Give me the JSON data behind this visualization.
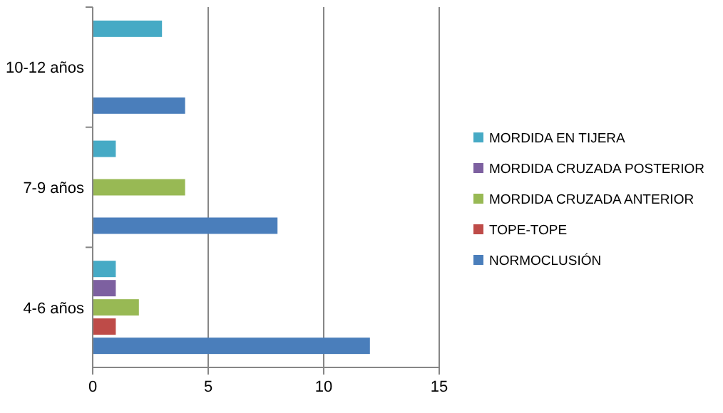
{
  "chart_data": {
    "type": "bar",
    "orientation": "horizontal",
    "categories": [
      "10-12 años",
      "7-9 años",
      "4-6 años"
    ],
    "series": [
      {
        "name": "NORMOCLUSIÓN",
        "color": "#4a7ebb",
        "values": [
          4,
          8,
          12
        ]
      },
      {
        "name": "TOPE-TOPE",
        "color": "#be4b48",
        "values": [
          0,
          0,
          1
        ]
      },
      {
        "name": "MORDIDA CRUZADA ANTERIOR",
        "color": "#98b954",
        "values": [
          0,
          4,
          2
        ]
      },
      {
        "name": "MORDIDA CRUZADA POSTERIOR",
        "color": "#7d60a0",
        "values": [
          0,
          0,
          1
        ]
      },
      {
        "name": "MORDIDA EN TIJERA",
        "color": "#46aac5",
        "values": [
          3,
          1,
          1
        ]
      }
    ],
    "xlim": [
      0,
      15
    ],
    "xticks": [
      0,
      5,
      10,
      15
    ],
    "grid": "x",
    "legend": "right"
  }
}
